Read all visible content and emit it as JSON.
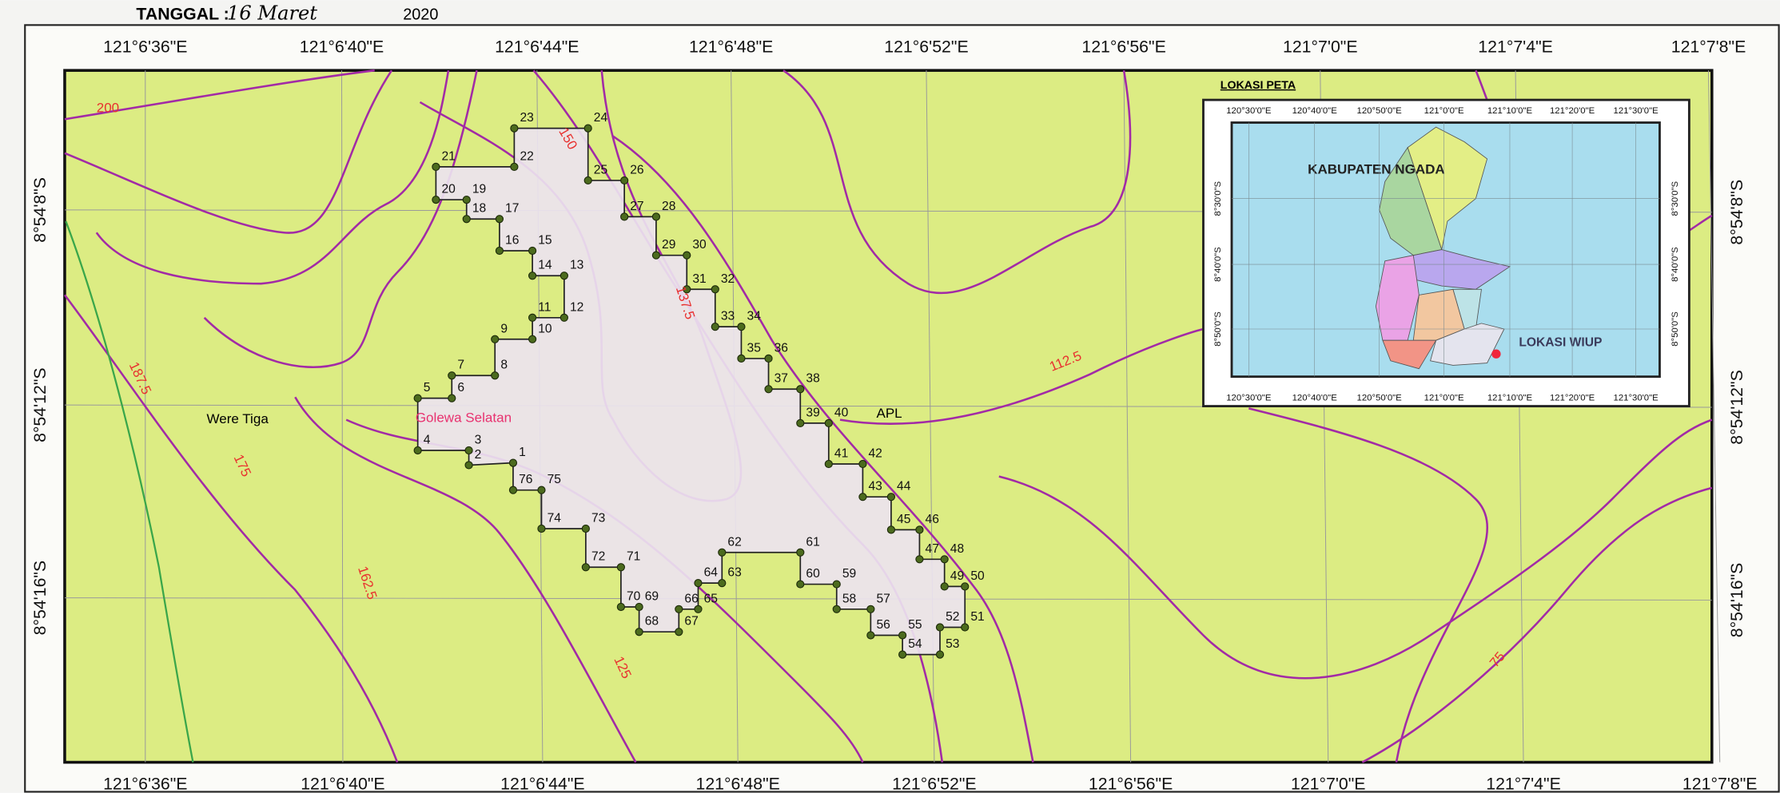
{
  "header": {
    "date_label": "TANGGAL :",
    "date_handwritten": "16 Maret",
    "year": "2020"
  },
  "map": {
    "longitude_labels": [
      "121°6'36\"E",
      "121°6'40\"E",
      "121°6'44\"E",
      "121°6'48\"E",
      "121°6'52\"E",
      "121°6'56\"E",
      "121°7'0\"E",
      "121°7'4\"E",
      "121°7'8\"E"
    ],
    "latitude_labels": [
      "8°54'8\"S",
      "8°54'12\"S",
      "8°54'16\"S"
    ],
    "contour_labels": [
      "200",
      "150",
      "137.5",
      "187.5",
      "175",
      "162.5",
      "125",
      "112.5",
      "75"
    ],
    "places": [
      "Were Tiga",
      "Golewa Selatan",
      "APL"
    ],
    "boundary_points": [
      "1",
      "2",
      "3",
      "4",
      "5",
      "6",
      "7",
      "8",
      "9",
      "10",
      "11",
      "12",
      "13",
      "14",
      "15",
      "16",
      "17",
      "18",
      "19",
      "20",
      "21",
      "22",
      "23",
      "24",
      "25",
      "26",
      "27",
      "28",
      "29",
      "30",
      "31",
      "32",
      "33",
      "34",
      "35",
      "36",
      "37",
      "38",
      "39",
      "40",
      "41",
      "42",
      "43",
      "44",
      "45",
      "46",
      "47",
      "48",
      "49",
      "50",
      "51",
      "52",
      "53",
      "54",
      "55",
      "56",
      "57",
      "58",
      "59",
      "60",
      "61",
      "62",
      "63",
      "64",
      "65",
      "66",
      "67",
      "68",
      "69",
      "70",
      "71",
      "72",
      "73",
      "74",
      "75",
      "76"
    ]
  },
  "inset": {
    "title": "LOKASI PETA",
    "longitude_labels": [
      "120°30'0\"E",
      "120°40'0\"E",
      "120°50'0\"E",
      "121°0'0\"E",
      "121°10'0\"E",
      "121°20'0\"E",
      "121°30'0\"E"
    ],
    "latitude_labels": [
      "8°30'0\"S",
      "8°40'0\"S",
      "8°50'0\"S"
    ],
    "region_label": "KABUPATEN NGADA",
    "site_label": "LOKASI WIUP"
  }
}
